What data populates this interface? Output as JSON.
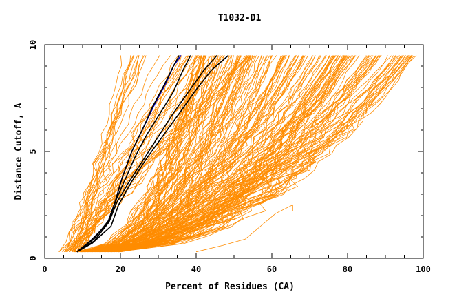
{
  "chart_data": {
    "type": "line",
    "title": "T1032-D1",
    "xlabel": "Percent of Residues (CA)",
    "ylabel": "Distance Cutoff, A",
    "xlim": [
      0,
      100
    ],
    "ylim": [
      0,
      10
    ],
    "x_ticks": [
      0,
      20,
      40,
      60,
      80,
      100
    ],
    "x_tick_labels": [
      "0",
      "20",
      "40",
      "60",
      "80",
      "100"
    ],
    "y_ticks": [
      0,
      5,
      10
    ],
    "y_tick_labels": [
      "0",
      "5",
      "10"
    ],
    "legend": "none",
    "grid": false,
    "colors": {
      "orange": "#ff8c00",
      "black": "#000000",
      "blue": "#0000cc"
    },
    "series": [
      {
        "color": "blue",
        "x": [
          8.5,
          12,
          16.5,
          18.5,
          20.5,
          23,
          26,
          29,
          32,
          34,
          36
        ],
        "y": [
          0.3,
          0.8,
          1.6,
          2.6,
          3.8,
          5.0,
          6.1,
          7.2,
          8.2,
          9.0,
          9.5
        ]
      },
      {
        "color": "black",
        "x": [
          8.5,
          12,
          16.5,
          18.5,
          20.5,
          23,
          26,
          28.5,
          31.5,
          34,
          35.5
        ],
        "y": [
          0.3,
          0.8,
          1.6,
          2.6,
          3.8,
          5.0,
          6.1,
          7.1,
          8.1,
          9.0,
          9.5
        ]
      },
      {
        "color": "black",
        "x": [
          8.5,
          13,
          17,
          19,
          21.5,
          24,
          27,
          30.5,
          34,
          36.5,
          38.5
        ],
        "y": [
          0.3,
          0.9,
          1.8,
          2.8,
          3.8,
          4.8,
          5.8,
          6.8,
          7.8,
          8.8,
          9.5
        ]
      },
      {
        "color": "black",
        "x": [
          8.5,
          13,
          17,
          19,
          22,
          26,
          30,
          34,
          38,
          42,
          45.5
        ],
        "y": [
          0.3,
          0.8,
          1.7,
          2.6,
          3.5,
          4.6,
          5.7,
          6.8,
          7.8,
          8.8,
          9.5
        ]
      },
      {
        "color": "black",
        "x": [
          8.5,
          12.5,
          17.5,
          19.5,
          23,
          27,
          31.5,
          36,
          40,
          44,
          48.5
        ],
        "y": [
          0.3,
          0.7,
          1.5,
          2.5,
          3.6,
          4.7,
          5.8,
          6.9,
          7.9,
          8.8,
          9.5
        ]
      }
    ]
  }
}
